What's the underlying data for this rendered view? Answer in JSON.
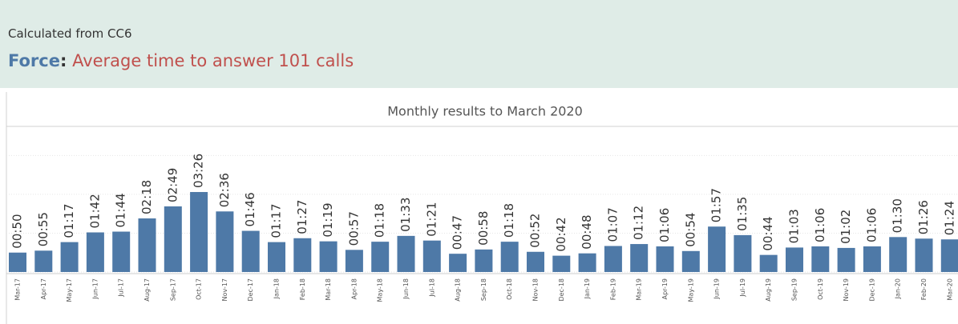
{
  "header": {
    "label": "Calculated from CC6",
    "title_lead": "Force",
    "title_sep": ":",
    "title": "Average time to answer 101 calls"
  },
  "chart_data": {
    "type": "bar",
    "title": "Monthly results to March 2020",
    "color": "#4e79a7",
    "categories": [
      "Mar-17",
      "Apr-17",
      "May-17",
      "Jun-17",
      "Jul-17",
      "Aug-17",
      "Sep-17",
      "Oct-17",
      "Nov-17",
      "Dec-17",
      "Jan-18",
      "Feb-18",
      "Mar-18",
      "Apr-18",
      "May-18",
      "Jun-18",
      "Jul-18",
      "Aug-18",
      "Sep-18",
      "Oct-18",
      "Nov-18",
      "Dec-18",
      "Jan-19",
      "Feb-19",
      "Mar-19",
      "Apr-19",
      "May-19",
      "Jun-19",
      "Jul-19",
      "Aug-19",
      "Sep-19",
      "Oct-19",
      "Nov-19",
      "Dec-19",
      "Jan-20",
      "Feb-20",
      "Mar-20"
    ],
    "values": [
      50,
      55,
      77,
      102,
      104,
      138,
      169,
      206,
      156,
      106,
      77,
      87,
      79,
      57,
      78,
      93,
      81,
      47,
      58,
      78,
      52,
      42,
      48,
      67,
      72,
      66,
      54,
      117,
      95,
      44,
      63,
      66,
      62,
      66,
      90,
      86,
      84
    ],
    "value_labels": [
      "00:50",
      "00:55",
      "01:17",
      "01:42",
      "01:44",
      "02:18",
      "02:49",
      "03:26",
      "02:36",
      "01:46",
      "01:17",
      "01:27",
      "01:19",
      "00:57",
      "01:18",
      "01:33",
      "01:21",
      "00:47",
      "00:58",
      "01:18",
      "00:52",
      "00:42",
      "00:48",
      "01:07",
      "01:12",
      "01:06",
      "00:54",
      "01:57",
      "01:35",
      "00:44",
      "01:03",
      "01:06",
      "01:02",
      "01:06",
      "01:30",
      "01:26",
      "01:24"
    ],
    "ylim": [
      0,
      375
    ],
    "yticks": [
      0,
      100,
      200,
      300
    ],
    "grid": true
  }
}
